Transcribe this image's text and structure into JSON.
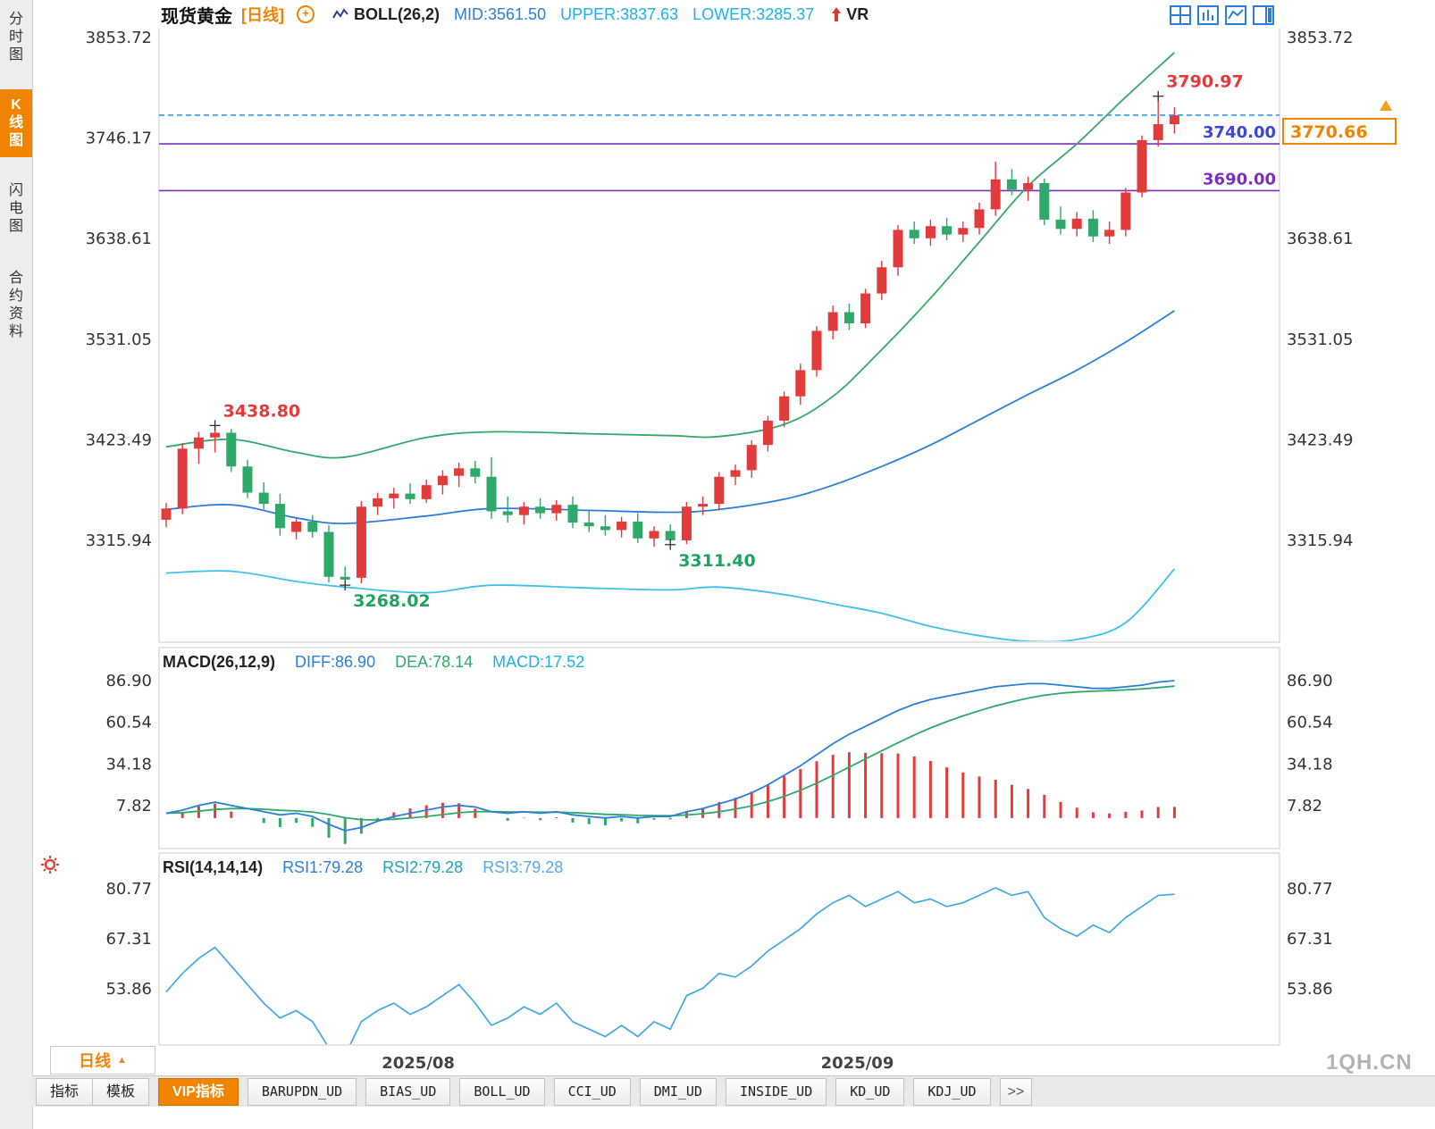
{
  "sidebar": {
    "items": [
      {
        "label": "分时图",
        "active": false
      },
      {
        "label": "K线图",
        "active": true
      },
      {
        "label": "闪电图",
        "active": false
      },
      {
        "label": "合约资料",
        "active": false
      }
    ]
  },
  "header": {
    "symbol": "现货黄金",
    "period": "[日线]",
    "plus_icon": "+",
    "indicator": "BOLL(26,2)",
    "mid": "MID:3561.50",
    "upper": "UPPER:3837.63",
    "lower": "LOWER:3285.37",
    "vr": "VR"
  },
  "chart_data": [
    {
      "type": "candlestick",
      "title": "现货黄金 日线 BOLL(26,2)",
      "y_ticks": [
        {
          "v": 3853.72,
          "label": "3853.72"
        },
        {
          "v": 3746.17,
          "label": "3746.17"
        },
        {
          "v": 3638.61,
          "label": "3638.61"
        },
        {
          "v": 3531.05,
          "label": "3531.05"
        },
        {
          "v": 3423.49,
          "label": "3423.49"
        },
        {
          "v": 3315.94,
          "label": "3315.94"
        }
      ],
      "x_ticks": [
        {
          "i": 15.5,
          "label": "2025/08"
        },
        {
          "i": 42.5,
          "label": "2025/09"
        }
      ],
      "colors": {
        "up": "#E23B3B",
        "down": "#2EA96A"
      },
      "candles": [
        [
          3338,
          3356,
          3330,
          3350
        ],
        [
          3350,
          3420,
          3344,
          3414
        ],
        [
          3414,
          3432,
          3398,
          3426
        ],
        [
          3426,
          3438.8,
          3410,
          3431
        ],
        [
          3431,
          3435,
          3389,
          3395
        ],
        [
          3395,
          3402,
          3361,
          3367
        ],
        [
          3367,
          3378,
          3349,
          3355
        ],
        [
          3355,
          3366,
          3321,
          3329
        ],
        [
          3325,
          3341,
          3317,
          3336
        ],
        [
          3336,
          3343,
          3319,
          3325
        ],
        [
          3325,
          3332,
          3271,
          3277
        ],
        [
          3277,
          3288,
          3268.02,
          3274
        ],
        [
          3276,
          3358,
          3270,
          3352
        ],
        [
          3352,
          3367,
          3343,
          3361
        ],
        [
          3361,
          3372,
          3350,
          3366
        ],
        [
          3366,
          3377,
          3355,
          3360
        ],
        [
          3360,
          3381,
          3356,
          3375
        ],
        [
          3375,
          3391,
          3365,
          3385
        ],
        [
          3385,
          3399,
          3373,
          3393
        ],
        [
          3393,
          3401,
          3377,
          3384
        ],
        [
          3384,
          3405,
          3339,
          3347
        ],
        [
          3347,
          3363,
          3335,
          3343
        ],
        [
          3343,
          3357,
          3333,
          3352
        ],
        [
          3352,
          3361,
          3339,
          3345
        ],
        [
          3345,
          3359,
          3337,
          3354
        ],
        [
          3354,
          3363,
          3329,
          3335
        ],
        [
          3335,
          3349,
          3325,
          3331
        ],
        [
          3331,
          3343,
          3321,
          3327
        ],
        [
          3327,
          3341,
          3319,
          3336
        ],
        [
          3336,
          3345,
          3313,
          3318
        ],
        [
          3318,
          3331,
          3309,
          3326
        ],
        [
          3326,
          3333,
          3311.4,
          3316
        ],
        [
          3316,
          3357,
          3312,
          3352
        ],
        [
          3352,
          3363,
          3343,
          3355
        ],
        [
          3355,
          3389,
          3348,
          3384
        ],
        [
          3384,
          3397,
          3375,
          3391
        ],
        [
          3391,
          3423,
          3383,
          3418
        ],
        [
          3418,
          3449,
          3411,
          3444
        ],
        [
          3444,
          3475,
          3437,
          3470
        ],
        [
          3470,
          3505,
          3461,
          3498
        ],
        [
          3498,
          3545,
          3491,
          3540
        ],
        [
          3540,
          3567,
          3531,
          3560
        ],
        [
          3560,
          3569,
          3541,
          3548
        ],
        [
          3548,
          3585,
          3543,
          3580
        ],
        [
          3580,
          3615,
          3573,
          3608
        ],
        [
          3608,
          3653,
          3599,
          3648
        ],
        [
          3648,
          3657,
          3633,
          3639
        ],
        [
          3639,
          3659,
          3631,
          3652
        ],
        [
          3652,
          3661,
          3637,
          3643
        ],
        [
          3643,
          3657,
          3635,
          3650
        ],
        [
          3650,
          3677,
          3643,
          3670
        ],
        [
          3670,
          3721,
          3663,
          3702
        ],
        [
          3702,
          3713,
          3685,
          3691
        ],
        [
          3691,
          3705,
          3679,
          3698
        ],
        [
          3698,
          3703,
          3653,
          3659
        ],
        [
          3659,
          3673,
          3643,
          3649
        ],
        [
          3649,
          3667,
          3641,
          3660
        ],
        [
          3660,
          3669,
          3635,
          3641
        ],
        [
          3641,
          3657,
          3633,
          3648
        ],
        [
          3648,
          3693,
          3641,
          3688
        ],
        [
          3688,
          3749,
          3683,
          3744
        ],
        [
          3744,
          3790.97,
          3737,
          3761
        ],
        [
          3761,
          3779,
          3751,
          3770.66
        ]
      ],
      "boll": {
        "colors": {
          "upper": "#35A86B",
          "mid": "#2B7FD9",
          "lower": "#3FC1E8"
        },
        "points": [
          {
            "i": 0,
            "u": 3416,
            "m": 3349,
            "l": 3281
          },
          {
            "i": 4,
            "u": 3424,
            "m": 3354,
            "l": 3283
          },
          {
            "i": 8,
            "u": 3410,
            "m": 3340,
            "l": 3272
          },
          {
            "i": 11,
            "u": 3405,
            "m": 3334,
            "l": 3266
          },
          {
            "i": 16,
            "u": 3426,
            "m": 3342,
            "l": 3260
          },
          {
            "i": 20,
            "u": 3432,
            "m": 3350,
            "l": 3268
          },
          {
            "i": 26,
            "u": 3430,
            "m": 3348,
            "l": 3265
          },
          {
            "i": 31,
            "u": 3428,
            "m": 3346,
            "l": 3263
          },
          {
            "i": 34,
            "u": 3427,
            "m": 3349,
            "l": 3266
          },
          {
            "i": 38,
            "u": 3440,
            "m": 3360,
            "l": 3258
          },
          {
            "i": 41,
            "u": 3470,
            "m": 3375,
            "l": 3248
          },
          {
            "i": 44,
            "u": 3520,
            "m": 3395,
            "l": 3238
          },
          {
            "i": 47,
            "u": 3575,
            "m": 3418,
            "l": 3224
          },
          {
            "i": 50,
            "u": 3635,
            "m": 3445,
            "l": 3214
          },
          {
            "i": 53,
            "u": 3695,
            "m": 3472,
            "l": 3208
          },
          {
            "i": 56,
            "u": 3740,
            "m": 3498,
            "l": 3210
          },
          {
            "i": 59,
            "u": 3790,
            "m": 3528,
            "l": 3228
          },
          {
            "i": 62,
            "u": 3837.63,
            "m": 3561.5,
            "l": 3285.37
          }
        ]
      },
      "hlines": [
        {
          "v": 3740.0,
          "label": "3740.00",
          "label_color": "#3D46D9",
          "line_color": "#7B2FBE"
        },
        {
          "v": 3690.0,
          "label": "3690.00",
          "label_color": "#7B2FBE",
          "line_color": "#7B2FBE"
        }
      ],
      "current_price": {
        "v": 3770.66,
        "label": "3770.66",
        "line_color": "#2F9BE0",
        "box_color": "#F08300",
        "arrow_color": "#F5A11C"
      },
      "annotations": [
        {
          "i": 3,
          "v": 3438.8,
          "label": "3438.80",
          "color": "#E23B3B",
          "pos": "above"
        },
        {
          "i": 11,
          "v": 3268.02,
          "label": "3268.02",
          "color": "#1FA361",
          "pos": "below"
        },
        {
          "i": 31,
          "v": 3311.4,
          "label": "3311.40",
          "color": "#1FA361",
          "pos": "below"
        },
        {
          "i": 61,
          "v": 3790.97,
          "label": "3790.97",
          "color": "#E23B3B",
          "pos": "above"
        }
      ]
    },
    {
      "type": "macd",
      "title": "MACD(26,12,9)",
      "diff_label": "DIFF:86.90",
      "dea_label": "DEA:78.14",
      "macd_label": "MACD:17.52",
      "y_ticks": [
        {
          "v": 86.9,
          "label": "86.90"
        },
        {
          "v": 60.54,
          "label": "60.54"
        },
        {
          "v": 34.18,
          "label": "34.18"
        },
        {
          "v": 7.82,
          "label": "7.82"
        }
      ],
      "colors": {
        "diff": "#2B7FD9",
        "dea": "#2EA96A",
        "pos": "#E23B3B",
        "neg": "#2EA96A"
      },
      "diff": [
        3,
        5,
        8,
        10,
        8,
        6,
        4,
        2,
        3,
        1,
        -4,
        -8,
        -6,
        -2,
        1,
        3,
        5,
        7,
        8,
        7,
        4,
        3,
        4,
        3,
        4,
        2,
        1,
        0,
        1,
        0,
        1,
        1,
        4,
        6,
        9,
        12,
        16,
        21,
        27,
        33,
        40,
        47,
        53,
        58,
        63,
        68,
        72,
        75,
        77,
        79,
        81,
        83,
        84,
        85,
        85,
        84,
        83,
        82,
        82,
        83,
        84,
        86,
        86.9
      ]
    },
    {
      "type": "rsi",
      "title": "RSI(14,14,14)",
      "rsi1_label": "RSI1:79.28",
      "rsi2_label": "RSI2:79.28",
      "rsi3_label": "RSI3:79.28",
      "y_ticks": [
        {
          "v": 80.77,
          "label": "80.77"
        },
        {
          "v": 67.31,
          "label": "67.31"
        },
        {
          "v": 53.86,
          "label": "53.86"
        }
      ],
      "color": "#3FA9E0",
      "values": [
        53,
        58,
        62,
        65,
        60,
        55,
        50,
        46,
        48,
        45,
        38,
        36,
        45,
        48,
        50,
        47,
        49,
        52,
        55,
        50,
        44,
        46,
        49,
        47,
        50,
        45,
        43,
        41,
        44,
        41,
        45,
        43,
        52,
        54,
        58,
        57,
        60,
        64,
        67,
        70,
        74,
        77,
        79,
        76,
        78,
        80,
        77,
        78,
        76,
        77,
        79,
        81,
        79,
        80,
        73,
        70,
        68,
        71,
        69,
        73,
        76,
        79,
        79.28
      ]
    }
  ],
  "footer": {
    "period_button": "日线",
    "period_arrow": "▲",
    "watermark": "1QH.CN",
    "tabs": [
      {
        "label": "指标"
      },
      {
        "label": "模板"
      },
      {
        "label": "VIP指标",
        "active": true
      },
      {
        "label": "BARUPDN_UD"
      },
      {
        "label": "BIAS_UD"
      },
      {
        "label": "BOLL_UD"
      },
      {
        "label": "CCI_UD"
      },
      {
        "label": "DMI_UD"
      },
      {
        "label": "INSIDE_UD"
      },
      {
        "label": "KD_UD"
      },
      {
        "label": "KDJ_UD"
      },
      {
        "label": ">>"
      }
    ]
  }
}
